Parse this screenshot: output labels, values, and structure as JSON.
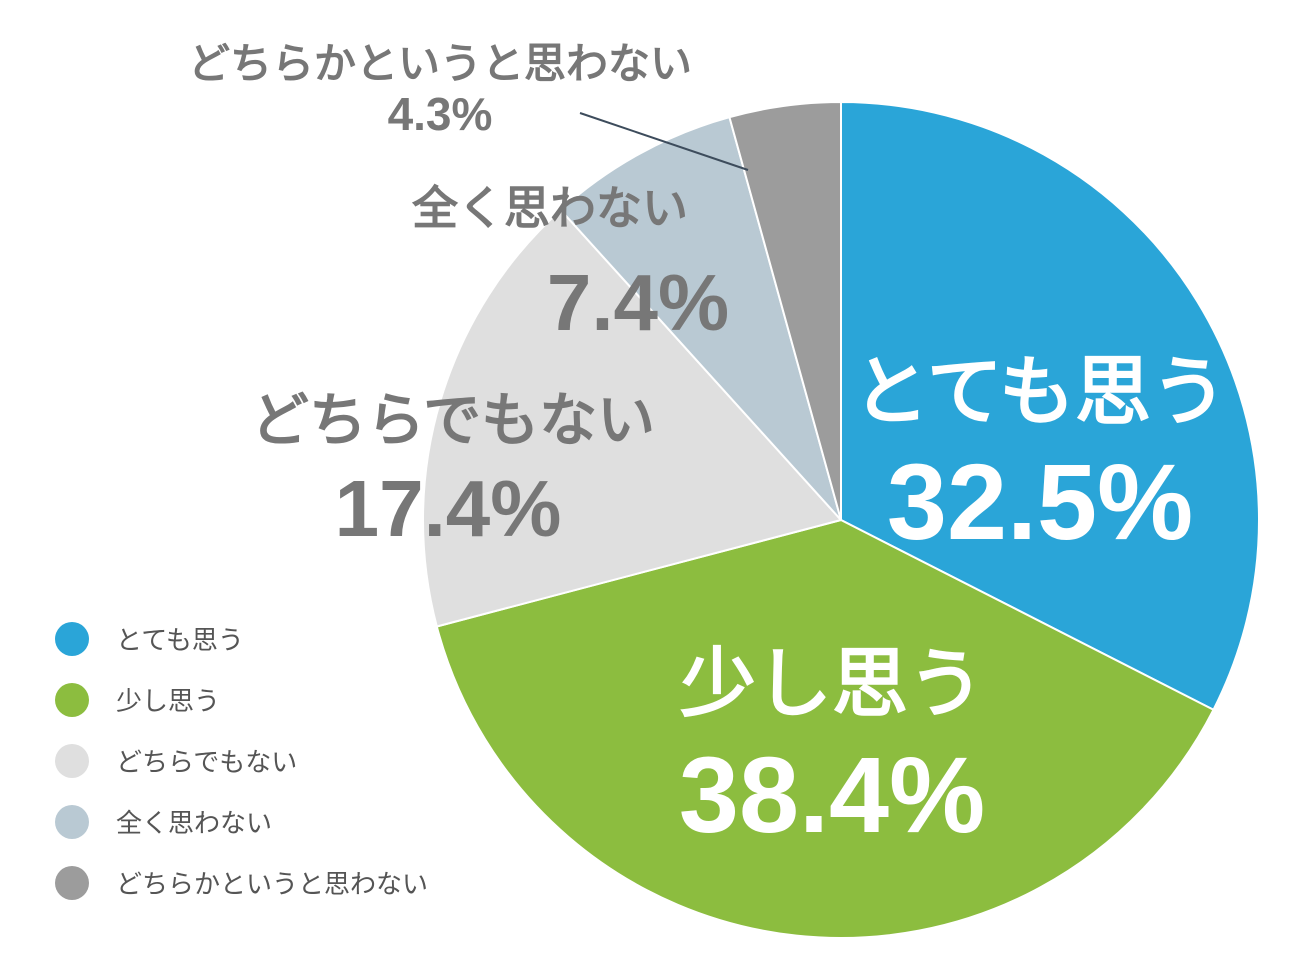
{
  "chart_data": {
    "type": "pie",
    "start_angle": "12 o'clock",
    "direction": "clockwise",
    "legend_position": "bottom-left",
    "slices": [
      {
        "label": "とても思う",
        "value": 32.5,
        "value_label": "32.5%",
        "color": "#2aa5d8",
        "text_color": "#ffffff"
      },
      {
        "label": "少し思う",
        "value": 38.4,
        "value_label": "38.4%",
        "color": "#8cbd3f",
        "text_color": "#ffffff"
      },
      {
        "label": "どちらでもない",
        "value": 17.4,
        "value_label": "17.4%",
        "color": "#dfdfdf",
        "text_color": "#777777"
      },
      {
        "label": "全く思わない",
        "value": 7.4,
        "value_label": "7.4%",
        "color": "#b9c9d3",
        "text_color": "#777777"
      },
      {
        "label": "どちらかというと思わない",
        "value": 4.3,
        "value_label": "4.3%",
        "color": "#9c9c9c",
        "text_color": "#777777"
      }
    ]
  }
}
